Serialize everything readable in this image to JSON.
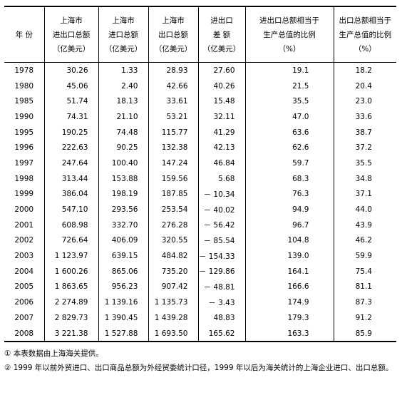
{
  "table": {
    "header": [
      [
        "年 份"
      ],
      [
        "上海市",
        "进出口总额",
        "（亿美元）"
      ],
      [
        "上海市",
        "进口总额",
        "（亿美元）"
      ],
      [
        "上海市",
        "出口总额",
        "（亿美元）"
      ],
      [
        "进出口",
        "差 额",
        "（亿美元）"
      ],
      [
        "进出口总额相当于",
        "生产总值的比例",
        "（%）"
      ],
      [
        "出口总额相当于",
        "生产总值的比例",
        "（%）"
      ]
    ],
    "rows": [
      [
        "1978",
        "30.26",
        "1.33",
        "28.93",
        "27.60",
        "19.1",
        "18.2"
      ],
      [
        "1980",
        "45.06",
        "2.40",
        "42.66",
        "40.26",
        "21.5",
        "20.4"
      ],
      [
        "1985",
        "51.74",
        "18.13",
        "33.61",
        "15.48",
        "35.5",
        "23.0"
      ],
      [
        "1990",
        "74.31",
        "21.10",
        "53.21",
        "32.11",
        "47.0",
        "33.6"
      ],
      [
        "1995",
        "190.25",
        "74.48",
        "115.77",
        "41.29",
        "63.6",
        "38.7"
      ],
      [
        "1996",
        "222.63",
        "90.25",
        "132.38",
        "42.13",
        "62.6",
        "37.2"
      ],
      [
        "1997",
        "247.64",
        "100.40",
        "147.24",
        "46.84",
        "59.7",
        "35.5"
      ],
      [
        "1998",
        "313.44",
        "153.88",
        "159.56",
        "5.68",
        "68.3",
        "34.8"
      ],
      [
        "1999",
        "386.04",
        "198.19",
        "187.85",
        "－ 10.34",
        "76.3",
        "37.1"
      ],
      [
        "2000",
        "547.10",
        "293.56",
        "253.54",
        "－ 40.02",
        "94.9",
        "44.0"
      ],
      [
        "2001",
        "608.98",
        "332.70",
        "276.28",
        "－ 56.42",
        "96.7",
        "43.9"
      ],
      [
        "2002",
        "726.64",
        "406.09",
        "320.55",
        "－ 85.54",
        "104.8",
        "46.2"
      ],
      [
        "2003",
        "1 123.97",
        "639.15",
        "484.82",
        "－ 154.33",
        "139.0",
        "59.9"
      ],
      [
        "2004",
        "1 600.26",
        "865.06",
        "735.20",
        "－ 129.86",
        "164.1",
        "75.4"
      ],
      [
        "2005",
        "1 863.65",
        "956.23",
        "907.42",
        "－ 48.81",
        "166.6",
        "81.1"
      ],
      [
        "2006",
        "2 274.89",
        "1 139.16",
        "1 135.73",
        "－ 3.43",
        "174.9",
        "87.3"
      ],
      [
        "2007",
        "2 829.73",
        "1 390.45",
        "1 439.28",
        "48.83",
        "179.3",
        "91.2"
      ],
      [
        "2008",
        "3 221.38",
        "1 527.88",
        "1 693.50",
        "165.62",
        "163.3",
        "85.9"
      ]
    ]
  },
  "notes": [
    "① 本表数据由上海海关提供。",
    "② 1999 年以前外贸进口、出口商品总额为外经贸委统计口径，1999 年以后为海关统计的上海企业进口、出口总额。"
  ]
}
